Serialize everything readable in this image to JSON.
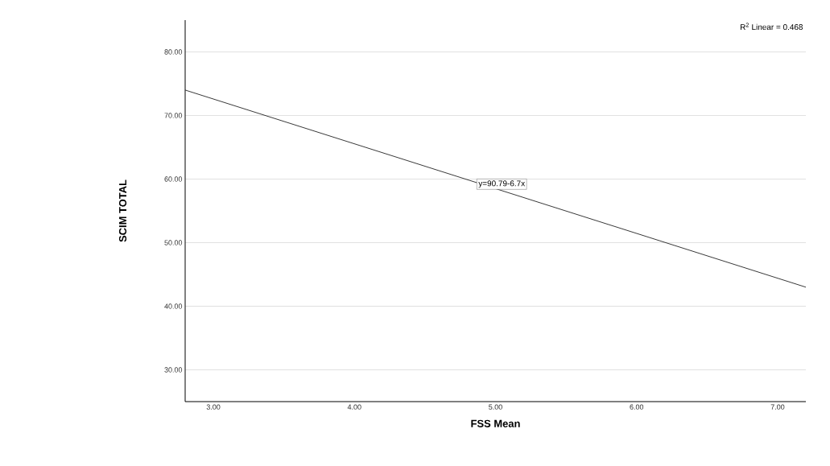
{
  "chart_data": {
    "type": "line",
    "xlabel": "FSS Mean",
    "ylabel": "SCIM TOTAL",
    "x": [
      2.8,
      7.2
    ],
    "series": [
      {
        "color": "#222222",
        "values": [
          74,
          43
        ]
      }
    ],
    "xlim": [
      2.8,
      7.2
    ],
    "ylim": [
      25,
      85
    ],
    "xticks": [
      {
        "value": 3,
        "label": "3.00"
      },
      {
        "value": 4,
        "label": "4.00"
      },
      {
        "value": 5,
        "label": "5.00"
      },
      {
        "value": 6,
        "label": "6.00"
      },
      {
        "value": 7,
        "label": "7.00"
      }
    ],
    "yticks": [
      {
        "value": 30,
        "label": "30.00"
      },
      {
        "value": 40,
        "label": "40.00"
      },
      {
        "value": 50,
        "label": "50.00"
      },
      {
        "value": 60,
        "label": "60.00"
      },
      {
        "value": 70,
        "label": "70.00"
      },
      {
        "value": 80,
        "label": "80.00"
      }
    ],
    "grid": "y",
    "marker": "none",
    "line_style": "solid",
    "annotations": [
      "y=90.79-6.7x",
      "R$^{2}$ Linear = 0.468"
    ]
  }
}
